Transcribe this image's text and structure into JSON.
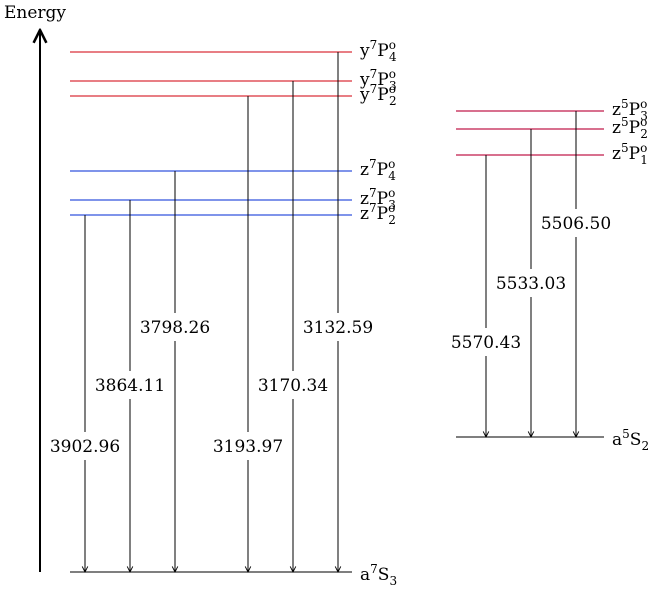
{
  "axis": {
    "label": "Energy"
  },
  "colors": {
    "septet_y": "#d9303a",
    "septet_z": "#3355dd",
    "quintet_z": "#c01a4a",
    "ground": "#333333"
  },
  "left_levels": [
    {
      "id": "y7P4",
      "term": "y",
      "mult": "7",
      "L": "P",
      "parity": "o",
      "J": "4",
      "group": "septet_y"
    },
    {
      "id": "y7P3",
      "term": "y",
      "mult": "7",
      "L": "P",
      "parity": "o",
      "J": "3",
      "group": "septet_y"
    },
    {
      "id": "y7P2",
      "term": "y",
      "mult": "7",
      "L": "P",
      "parity": "o",
      "J": "2",
      "group": "septet_y"
    },
    {
      "id": "z7P4",
      "term": "z",
      "mult": "7",
      "L": "P",
      "parity": "o",
      "J": "4",
      "group": "septet_z"
    },
    {
      "id": "z7P3",
      "term": "z",
      "mult": "7",
      "L": "P",
      "parity": "o",
      "J": "3",
      "group": "septet_z"
    },
    {
      "id": "z7P2",
      "term": "z",
      "mult": "7",
      "L": "P",
      "parity": "o",
      "J": "2",
      "group": "septet_z"
    }
  ],
  "left_ground": {
    "term": "a",
    "mult": "7",
    "L": "S",
    "parity": "",
    "J": "3"
  },
  "right_levels": [
    {
      "id": "z5P3",
      "term": "z",
      "mult": "5",
      "L": "P",
      "parity": "o",
      "J": "3",
      "group": "quintet_z"
    },
    {
      "id": "z5P2",
      "term": "z",
      "mult": "5",
      "L": "P",
      "parity": "o",
      "J": "2",
      "group": "quintet_z"
    },
    {
      "id": "z5P1",
      "term": "z",
      "mult": "5",
      "L": "P",
      "parity": "o",
      "J": "1",
      "group": "quintet_z"
    }
  ],
  "right_ground": {
    "term": "a",
    "mult": "5",
    "L": "S",
    "parity": "",
    "J": "2"
  },
  "transitions": [
    {
      "from": "z7P2",
      "to": "a7S3",
      "wavelength": "3902.96"
    },
    {
      "from": "z7P3",
      "to": "a7S3",
      "wavelength": "3864.11"
    },
    {
      "from": "z7P4",
      "to": "a7S3",
      "wavelength": "3798.26"
    },
    {
      "from": "y7P2",
      "to": "a7S3",
      "wavelength": "3193.97"
    },
    {
      "from": "y7P3",
      "to": "a7S3",
      "wavelength": "3170.34"
    },
    {
      "from": "y7P4",
      "to": "a7S3",
      "wavelength": "3132.59"
    },
    {
      "from": "z5P1",
      "to": "a5S2",
      "wavelength": "5570.43"
    },
    {
      "from": "z5P2",
      "to": "a5S2",
      "wavelength": "5533.03"
    },
    {
      "from": "z5P3",
      "to": "a5S2",
      "wavelength": "5506.50"
    }
  ]
}
